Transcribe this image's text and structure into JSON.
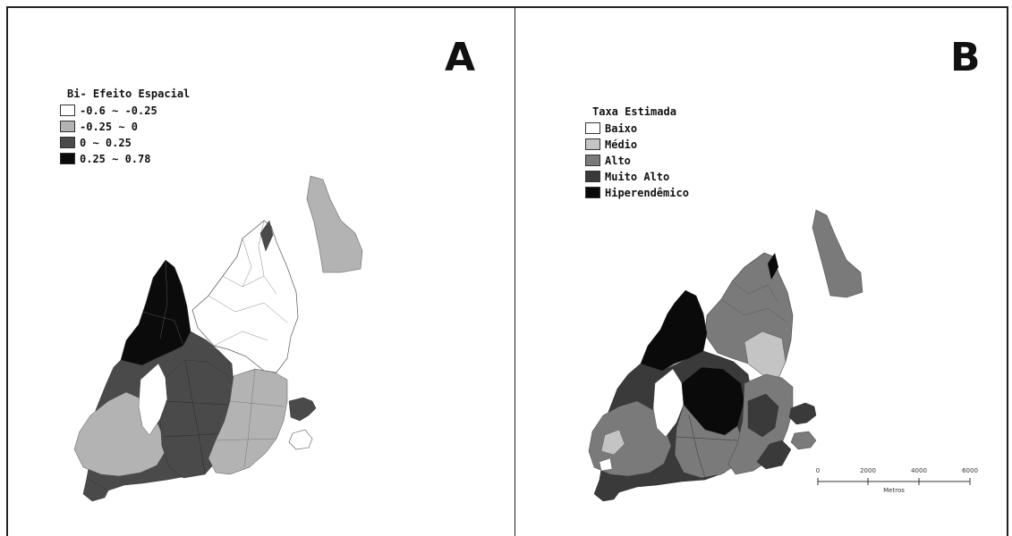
{
  "panels": [
    {
      "letter": "A",
      "legend": {
        "title": "Bi- Efeito Espacial",
        "items": [
          {
            "label": "-0.6 ∼ -0.25",
            "color": "#ffffff"
          },
          {
            "label": "-0.25 ∼ 0",
            "color": "#b3b3b3"
          },
          {
            "label": "0 ∼ 0.25",
            "color": "#4a4a4a"
          },
          {
            "label": "0.25 ∼ 0.78",
            "color": "#0b0b0b"
          }
        ]
      }
    },
    {
      "letter": "B",
      "legend": {
        "title": "Taxa Estimada",
        "items": [
          {
            "label": "Baixo",
            "color": "#ffffff"
          },
          {
            "label": "Médio",
            "color": "#c4c4c4"
          },
          {
            "label": "Alto",
            "color": "#7a7a7a"
          },
          {
            "label": "Muito Alto",
            "color": "#3a3a3a"
          },
          {
            "label": "Hiperendêmico",
            "color": "#0a0a0a"
          }
        ]
      },
      "scale_bar": {
        "ticks": [
          "0",
          "2000",
          "4000",
          "6000"
        ],
        "unit": "Metros"
      }
    }
  ]
}
